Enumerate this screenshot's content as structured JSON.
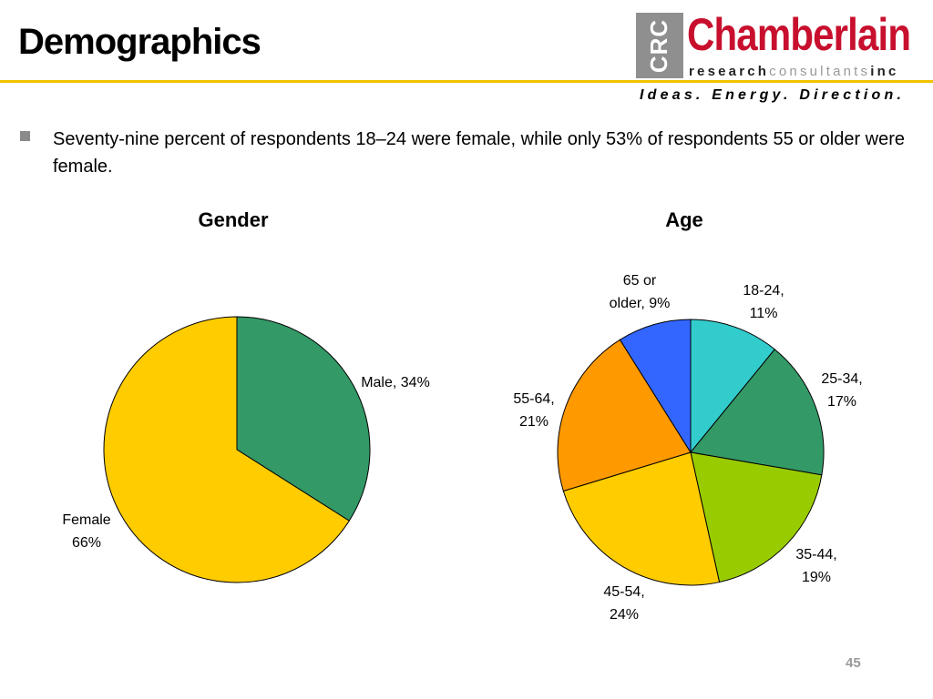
{
  "slide": {
    "title": "Demographics",
    "bullet": "Seventy-nine percent of respondents 18–24 were female, while only 53% of respondents 55 or older were female.",
    "page_number": "45"
  },
  "logo": {
    "mark": "CRC",
    "name": "Chamberlain",
    "sub_research": "research",
    "sub_consultants": "consultants",
    "sub_inc": "inc",
    "tagline": "Ideas. Energy. Direction."
  },
  "colors": {
    "accent_rule": "#f2c200",
    "brand_red": "#c8102e",
    "logo_gray": "#8f8f8f"
  },
  "chart_data": [
    {
      "type": "pie",
      "title": "Gender",
      "categories": [
        "Male",
        "Female"
      ],
      "values": [
        34,
        66
      ],
      "labels": [
        "Male, 34%",
        "Female, 66%"
      ],
      "colors": [
        "#339966",
        "#ffcc00"
      ]
    },
    {
      "type": "pie",
      "title": "Age",
      "categories": [
        "18-24",
        "25-34",
        "35-44",
        "45-54",
        "55-64",
        "65 or older"
      ],
      "values": [
        11,
        17,
        19,
        24,
        21,
        9
      ],
      "labels": [
        "18-24, 11%",
        "25-34, 17%",
        "35-44, 19%",
        "45-54, 24%",
        "55-64, 21%",
        "65 or older, 9%"
      ],
      "colors": [
        "#33cccc",
        "#339966",
        "#99cc00",
        "#ffcc00",
        "#ff9900",
        "#3366ff"
      ]
    }
  ]
}
